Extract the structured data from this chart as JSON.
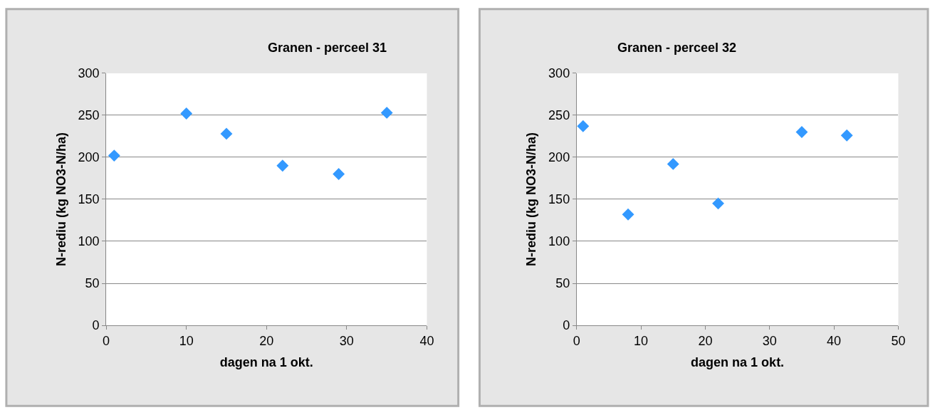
{
  "chart_data": [
    {
      "type": "scatter",
      "title": "Granen - perceel 31",
      "xlabel": "dagen na 1 okt.",
      "ylabel": "N-rediu (kg NO3-N/ha)",
      "x": [
        1,
        10,
        15,
        22,
        29,
        35
      ],
      "values": [
        202,
        252,
        228,
        190,
        180,
        253
      ],
      "color": "#3399ff",
      "marker": "diamond",
      "xlim": [
        0,
        40
      ],
      "xticks": [
        0,
        10,
        20,
        30,
        40
      ],
      "ylim": [
        0,
        300
      ],
      "yticks": [
        0,
        50,
        100,
        150,
        200,
        250,
        300
      ],
      "grid": "y"
    },
    {
      "type": "scatter",
      "title": "Granen - perceel 32",
      "xlabel": "dagen na 1 okt.",
      "ylabel": "N-rediu (kg NO3-N/ha)",
      "x": [
        1,
        8,
        15,
        22,
        35,
        42
      ],
      "values": [
        237,
        132,
        192,
        145,
        230,
        226
      ],
      "color": "#3399ff",
      "marker": "diamond",
      "xlim": [
        0,
        50
      ],
      "xticks": [
        0,
        10,
        20,
        30,
        40,
        50
      ],
      "ylim": [
        0,
        300
      ],
      "yticks": [
        0,
        50,
        100,
        150,
        200,
        250,
        300
      ],
      "grid": "y"
    }
  ]
}
